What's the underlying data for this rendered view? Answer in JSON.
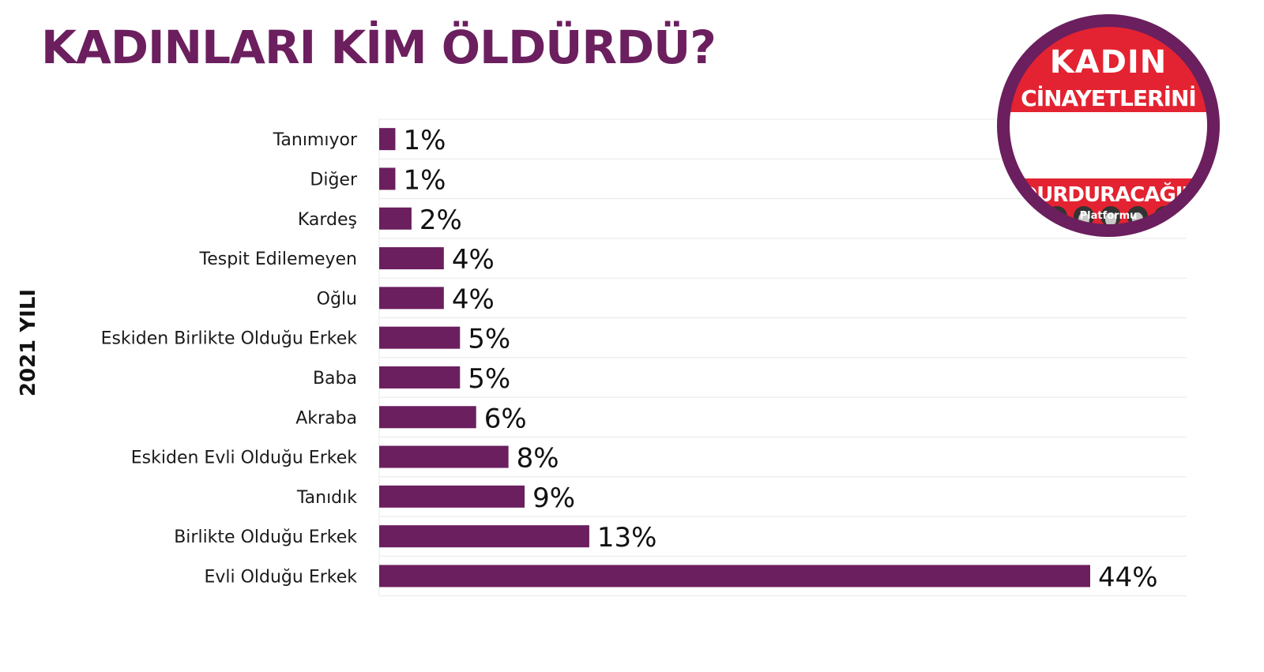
{
  "title": "KADINLARI KİM ÖLDÜRDÜ?",
  "side_label": "2021 YILI",
  "logo": {
    "line1": "KADIN",
    "line2": "CİNAYETLERİNİ",
    "line3": "DURDURACAĞIZ",
    "line4": "Platformu",
    "icon": "women-portraits-icon"
  },
  "colors": {
    "bar": "#6b1f5e",
    "title": "#6b1f5e",
    "logo_red": "#e32331"
  },
  "chart_data": {
    "type": "bar",
    "orientation": "horizontal",
    "title": "KADINLARI KİM ÖLDÜRDÜ?",
    "ylabel": "2021 YILI",
    "xlim": [
      0,
      50
    ],
    "grid": true,
    "categories": [
      "Tanımıyor",
      "Diğer",
      "Kardeş",
      "Tespit Edilemeyen",
      "Oğlu",
      "Eskiden Birlikte Olduğu Erkek",
      "Baba",
      "Akraba",
      "Eskiden Evli Olduğu Erkek",
      "Tanıdık",
      "Birlikte Olduğu Erkek",
      "Evli Olduğu Erkek"
    ],
    "values": [
      1,
      1,
      2,
      4,
      4,
      5,
      5,
      6,
      8,
      9,
      13,
      44
    ],
    "labels": [
      "1%",
      "1%",
      "2%",
      "4%",
      "4%",
      "5%",
      "5%",
      "6%",
      "8%",
      "9%",
      "13%",
      "44%"
    ]
  }
}
